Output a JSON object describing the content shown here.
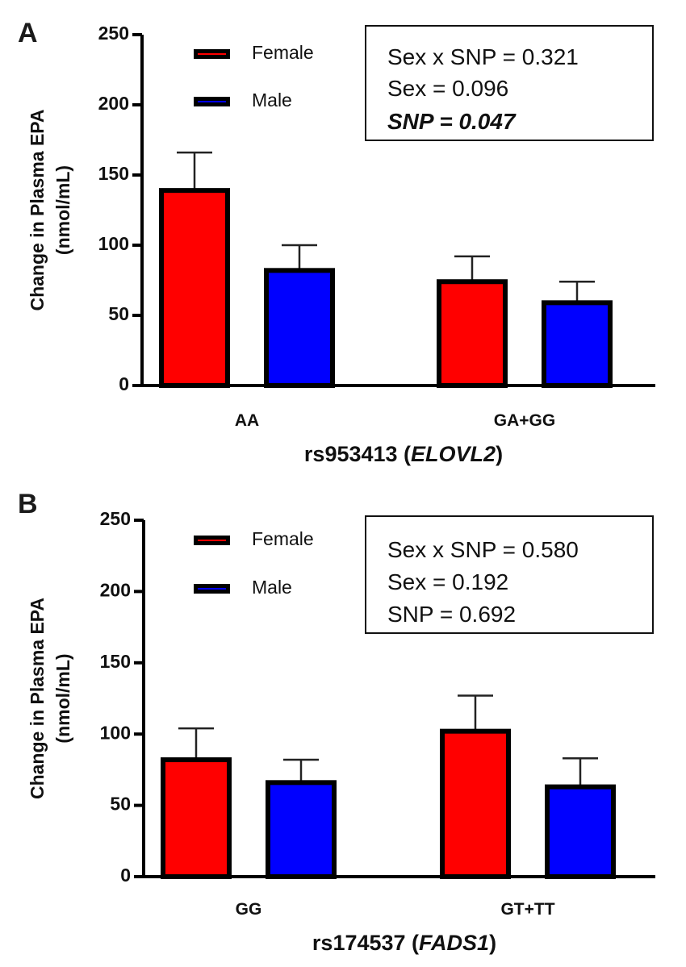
{
  "chart_data": [
    {
      "type": "bar",
      "panel": "A",
      "title": "",
      "xlabel": "rs953413",
      "xlabel_gene": "ELOVL2",
      "ylabel": "Change in Plasma EPA (nmol/mL)",
      "ylabel_line1": "Change in Plasma EPA",
      "ylabel_line2": "(nmol/mL)",
      "ylim": [
        0,
        250
      ],
      "yticks": [
        0,
        50,
        100,
        150,
        200,
        250
      ],
      "categories": [
        "AA",
        "GA+GG"
      ],
      "series": [
        {
          "name": "Female",
          "color": "#ff0000",
          "values": [
            139,
            74
          ],
          "error_upper": [
            166,
            92
          ]
        },
        {
          "name": "Male",
          "color": "#0000ff",
          "values": [
            82,
            59
          ],
          "error_upper": [
            100,
            74
          ]
        }
      ],
      "legend": {
        "placement": "top-left",
        "entries": [
          "Female",
          "Male"
        ]
      },
      "stats_box": {
        "placement": "top-right",
        "lines": [
          {
            "text": "Sex x SNP = 0.321",
            "bold_italic": false
          },
          {
            "text": "Sex = 0.096",
            "bold_italic": false
          },
          {
            "text": "SNP = 0.047",
            "bold_italic": true
          }
        ]
      },
      "grid": false
    },
    {
      "type": "bar",
      "panel": "B",
      "title": "",
      "xlabel": "rs174537",
      "xlabel_gene": "FADS1",
      "ylabel": "Change in Plasma EPA (nmol/mL)",
      "ylabel_line1": "Change in Plasma EPA",
      "ylabel_line2": "(nmol/mL)",
      "ylim": [
        0,
        250
      ],
      "yticks": [
        0,
        50,
        100,
        150,
        200,
        250
      ],
      "categories": [
        "GG",
        "GT+TT"
      ],
      "series": [
        {
          "name": "Female",
          "color": "#ff0000",
          "values": [
            82,
            102
          ],
          "error_upper": [
            104,
            127
          ]
        },
        {
          "name": "Male",
          "color": "#0000ff",
          "values": [
            66,
            63
          ],
          "error_upper": [
            82,
            83
          ]
        }
      ],
      "legend": {
        "placement": "top-left",
        "entries": [
          "Female",
          "Male"
        ]
      },
      "stats_box": {
        "placement": "top-right",
        "lines": [
          {
            "text": "Sex x SNP = 0.580",
            "bold_italic": false
          },
          {
            "text": "Sex = 0.192",
            "bold_italic": false
          },
          {
            "text": "SNP = 0.692",
            "bold_italic": false
          }
        ]
      },
      "grid": false
    }
  ]
}
